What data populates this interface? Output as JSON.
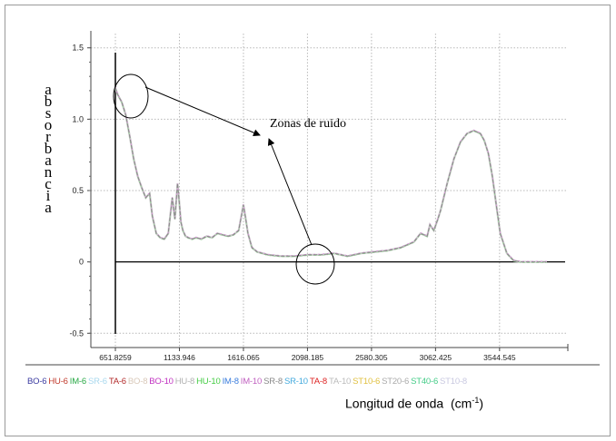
{
  "chart_data": {
    "type": "line",
    "ylabel": "absorbancia",
    "xlabel": "Longitud de onda",
    "xunit_base": "(cm",
    "xunit_exp": "-1",
    "xunit_close": ")",
    "ylim": [
      -0.6,
      1.6
    ],
    "yticks": [
      -0.5,
      0,
      0.5,
      1.0,
      1.5
    ],
    "ytick_labels": [
      "-0.5",
      "0",
      "0.5",
      "1.0",
      "1.5"
    ],
    "xlim": [
      600,
      4000
    ],
    "xticks": [
      651.8259,
      1133.946,
      1616.065,
      2098.185,
      2580.305,
      3062.425,
      3544.545
    ],
    "xtick_labels": [
      "651.8259",
      "1133.946",
      "1616.065",
      "2098.185",
      "2580.305",
      "3062.425",
      "3544.545"
    ],
    "grid": true,
    "annotation": "Zonas de ruido",
    "series": [
      {
        "color": "#888888",
        "x": [
          651,
          670,
          700,
          730,
          760,
          790,
          820,
          850,
          880,
          910,
          930,
          960,
          990,
          1020,
          1050,
          1080,
          1100,
          1120,
          1133,
          1145,
          1160,
          1180,
          1200,
          1230,
          1260,
          1300,
          1340,
          1380,
          1420,
          1460,
          1500,
          1540,
          1580,
          1600,
          1616,
          1630,
          1650,
          1680,
          1720,
          1760,
          1800,
          1900,
          2000,
          2100,
          2200,
          2300,
          2350,
          2400,
          2450,
          2500,
          2600,
          2700,
          2800,
          2850,
          2900,
          2950,
          3000,
          3020,
          3050,
          3080,
          3100,
          3150,
          3200,
          3250,
          3300,
          3350,
          3400,
          3430,
          3460,
          3490,
          3520,
          3550,
          3600,
          3650,
          3700,
          3750,
          3800,
          3850,
          3900
        ],
        "y": [
          1.22,
          1.17,
          1.12,
          1.03,
          0.88,
          0.72,
          0.6,
          0.52,
          0.45,
          0.48,
          0.32,
          0.2,
          0.17,
          0.16,
          0.2,
          0.45,
          0.3,
          0.55,
          0.42,
          0.28,
          0.22,
          0.18,
          0.17,
          0.16,
          0.17,
          0.16,
          0.18,
          0.17,
          0.2,
          0.19,
          0.18,
          0.19,
          0.22,
          0.32,
          0.4,
          0.32,
          0.2,
          0.1,
          0.07,
          0.06,
          0.05,
          0.04,
          0.04,
          0.05,
          0.05,
          0.06,
          0.05,
          0.04,
          0.05,
          0.06,
          0.07,
          0.08,
          0.1,
          0.12,
          0.14,
          0.2,
          0.18,
          0.26,
          0.22,
          0.3,
          0.36,
          0.55,
          0.72,
          0.84,
          0.9,
          0.92,
          0.9,
          0.85,
          0.76,
          0.6,
          0.4,
          0.2,
          0.06,
          0.01,
          0.0,
          0.0,
          0.0,
          0.0,
          0.0
        ]
      }
    ],
    "legend": [
      {
        "name": "BO-6",
        "color": "#3a3aa0"
      },
      {
        "name": "HU-6",
        "color": "#c0392b"
      },
      {
        "name": "IM-6",
        "color": "#27a844"
      },
      {
        "name": "SR-6",
        "color": "#a8d8ee"
      },
      {
        "name": "TA-6",
        "color": "#b22a2a"
      },
      {
        "name": "BO-8",
        "color": "#d8c8b8"
      },
      {
        "name": "BO-10",
        "color": "#c030c0"
      },
      {
        "name": "HU-8",
        "color": "#b0b0b0"
      },
      {
        "name": "HU-10",
        "color": "#44cc44"
      },
      {
        "name": "IM-8",
        "color": "#3b7ddd"
      },
      {
        "name": "IM-10",
        "color": "#c060c0"
      },
      {
        "name": "SR-8",
        "color": "#888888"
      },
      {
        "name": "SR-10",
        "color": "#44aadd"
      },
      {
        "name": "TA-8",
        "color": "#dd2222"
      },
      {
        "name": "TA-10",
        "color": "#bbbbbb"
      },
      {
        "name": "ST10-6",
        "color": "#e0c040"
      },
      {
        "name": "ST20-6",
        "color": "#aaaaaa"
      },
      {
        "name": "ST40-6",
        "color": "#44cc88"
      },
      {
        "name": "ST10-8",
        "color": "#c8c8e0"
      }
    ]
  }
}
